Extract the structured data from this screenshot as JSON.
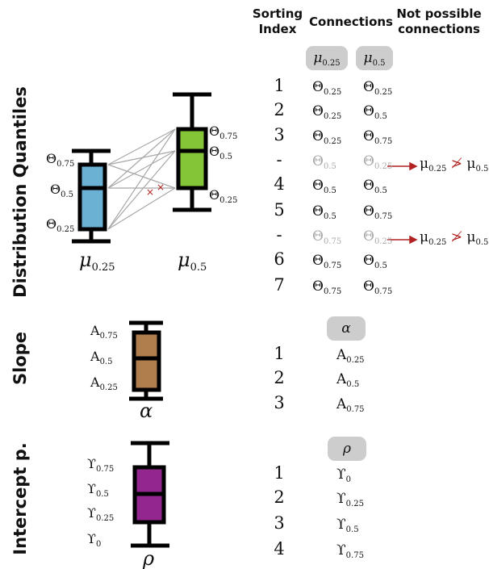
{
  "headers": {
    "sorting_index": "Sorting Index",
    "connections": "Connections",
    "not_possible": "Not possible connections"
  },
  "sections": {
    "distribution": "Distribution Quantiles",
    "slope": "Slope",
    "intercept": "Intercept p."
  },
  "distribution": {
    "box1": {
      "label": "μ",
      "label_sub": "0.25",
      "color": "#6bb1d3",
      "ticks": [
        {
          "sym": "Θ",
          "sub": "0.75"
        },
        {
          "sym": "Θ",
          "sub": "0.5"
        },
        {
          "sym": "Θ",
          "sub": "0.25"
        }
      ]
    },
    "box2": {
      "label": "μ",
      "label_sub": "0.5",
      "color": "#84c437",
      "ticks": [
        {
          "sym": "Θ",
          "sub": "0.75"
        },
        {
          "sym": "Θ",
          "sub": "0.5"
        },
        {
          "sym": "Θ",
          "sub": "0.25"
        }
      ]
    },
    "cross_mark": "×",
    "pill1": {
      "sym": "μ",
      "sub": "0.25"
    },
    "pill2": {
      "sym": "μ",
      "sub": "0.5"
    },
    "rows": [
      {
        "idx": "1",
        "a": "0.25",
        "b": "0.25",
        "grey": false
      },
      {
        "idx": "2",
        "a": "0.25",
        "b": "0.5",
        "grey": false
      },
      {
        "idx": "3",
        "a": "0.25",
        "b": "0.75",
        "grey": false
      },
      {
        "idx": "-",
        "a": "0.5",
        "b": "0.25",
        "grey": true
      },
      {
        "idx": "4",
        "a": "0.5",
        "b": "0.5",
        "grey": false
      },
      {
        "idx": "5",
        "a": "0.5",
        "b": "0.75",
        "grey": false
      },
      {
        "idx": "-",
        "a": "0.75",
        "b": "0.25",
        "grey": true
      },
      {
        "idx": "6",
        "a": "0.75",
        "b": "0.5",
        "grey": false
      },
      {
        "idx": "7",
        "a": "0.75",
        "b": "0.75",
        "grey": false
      }
    ],
    "theta": "Θ",
    "not_possible": [
      {
        "left": "μ",
        "left_sub": "0.25",
        "op": "≯",
        "right": "μ",
        "right_sub": "0.5"
      },
      {
        "left": "μ",
        "left_sub": "0.25",
        "op": "≯",
        "right": "μ",
        "right_sub": "0.5"
      }
    ]
  },
  "slope": {
    "label": "α",
    "color": "#b07d4c",
    "ticks": [
      {
        "sym": "A",
        "sub": "0.75"
      },
      {
        "sym": "A",
        "sub": "0.5"
      },
      {
        "sym": "A",
        "sub": "0.25"
      }
    ],
    "pill": "α",
    "rows": [
      {
        "idx": "1",
        "sym": "A",
        "sub": "0.25"
      },
      {
        "idx": "2",
        "sym": "A",
        "sub": "0.5"
      },
      {
        "idx": "3",
        "sym": "A",
        "sub": "0.75"
      }
    ]
  },
  "intercept": {
    "label": "ρ",
    "color": "#93278f",
    "ticks": [
      {
        "sym": "ϒ",
        "sub": "0.75"
      },
      {
        "sym": "ϒ",
        "sub": "0.5"
      },
      {
        "sym": "ϒ",
        "sub": "0.25"
      },
      {
        "sym": "ϒ",
        "sub": "0"
      }
    ],
    "pill": "ρ",
    "rows": [
      {
        "idx": "1",
        "sym": "ϒ",
        "sub": "0"
      },
      {
        "idx": "2",
        "sym": "ϒ",
        "sub": "0.25"
      },
      {
        "idx": "3",
        "sym": "ϒ",
        "sub": "0.5"
      },
      {
        "idx": "4",
        "sym": "ϒ",
        "sub": "0.75"
      }
    ]
  },
  "colors": {
    "arrow": "#b22222",
    "grey_line": "#a8a8a8"
  }
}
